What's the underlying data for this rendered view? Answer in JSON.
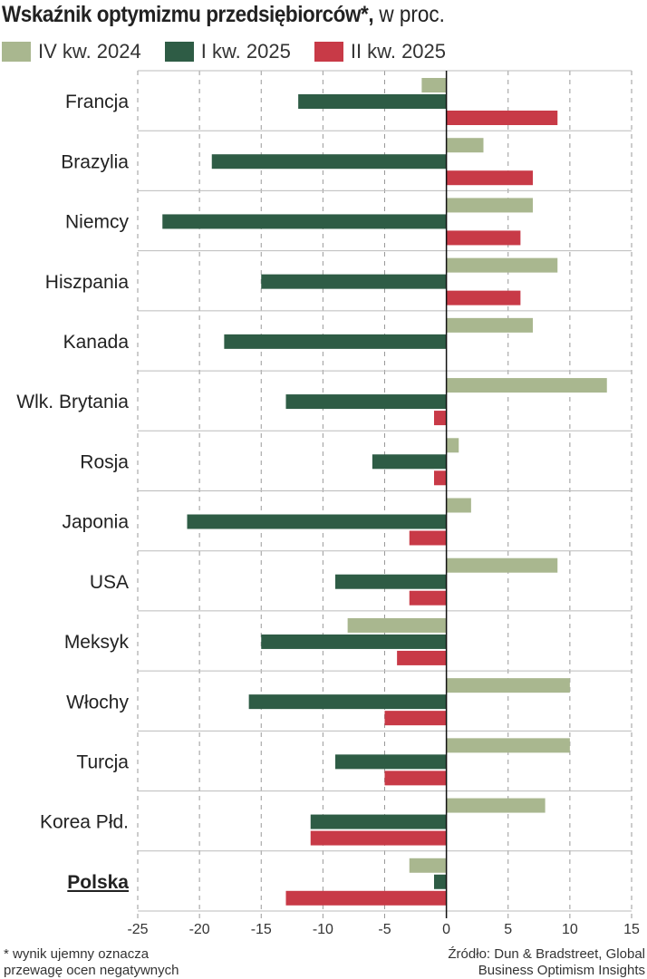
{
  "chart_data": {
    "type": "bar",
    "orientation": "horizontal",
    "title": "Wskaźnik optymizmu przedsiębiorców*,",
    "subtitle": " w proc.",
    "categories": [
      "Francja",
      "Brazylia",
      "Niemcy",
      "Hiszpania",
      "Kanada",
      "Wlk. Brytania",
      "Rosja",
      "Japonia",
      "USA",
      "Meksyk",
      "Włochy",
      "Turcja",
      "Korea Płd.",
      "Polska"
    ],
    "highlight": "Polska",
    "series": [
      {
        "name": "IV kw. 2024",
        "color": "#a9b78f",
        "values": [
          -2,
          3,
          7,
          9,
          7,
          13,
          1,
          2,
          9,
          -8,
          10,
          10,
          8,
          -3
        ]
      },
      {
        "name": "I kw. 2025",
        "color": "#2e5c45",
        "values": [
          -12,
          -19,
          -23,
          -15,
          -18,
          -13,
          -6,
          -21,
          -9,
          -15,
          -16,
          -9,
          -11,
          -1
        ]
      },
      {
        "name": "II kw. 2025",
        "color": "#c83a47",
        "values": [
          9,
          7,
          6,
          6,
          0,
          -1,
          -1,
          -3,
          -3,
          -4,
          -5,
          -5,
          -11,
          -13
        ]
      }
    ],
    "xlim": [
      -25,
      15
    ],
    "xticks": [
      "-25",
      "-20",
      "-15",
      "-10",
      "-5",
      "0",
      "5",
      "10",
      "15"
    ],
    "legend": "top",
    "grid": true
  },
  "footnote": [
    "* wynik ujemny oznacza",
    "przewagę ocen negatywnych"
  ],
  "source": [
    "Źródło: Dun & Bradstreet, Global",
    "Business Optimism Insights"
  ]
}
